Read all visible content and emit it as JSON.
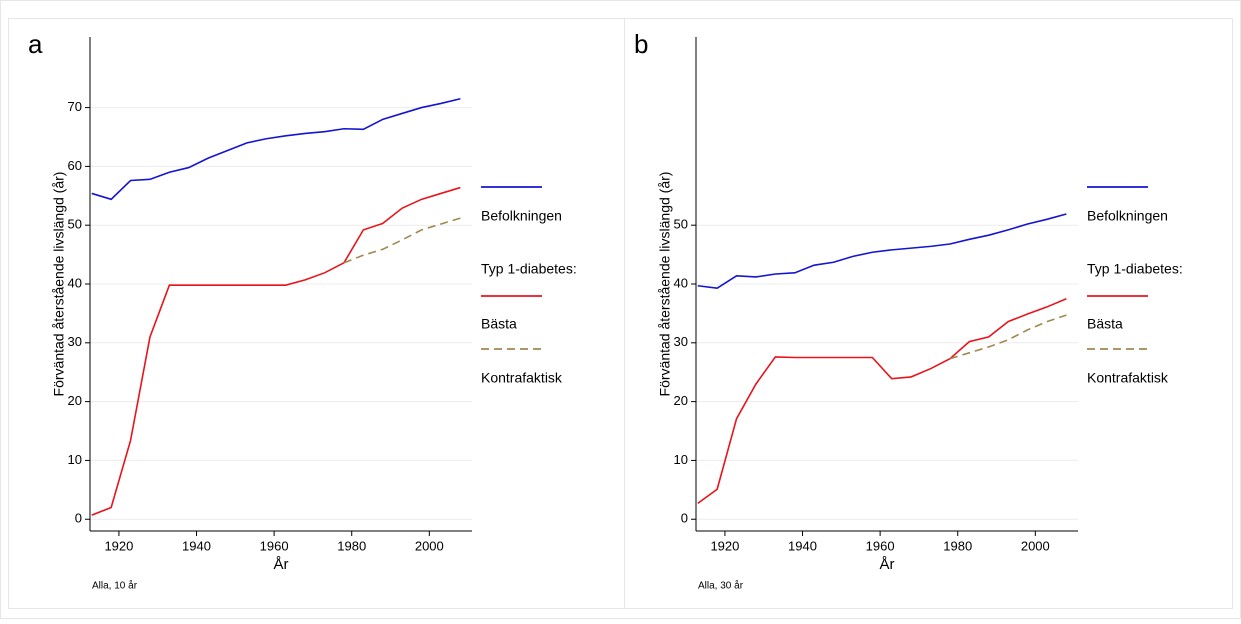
{
  "chart_data": [
    {
      "type": "line",
      "panel_label": "a",
      "ylabel": "Förväntad återstående livslängd (år)",
      "xlabel": "År",
      "note": "Alla, 10 år",
      "x": [
        1913,
        1918,
        1923,
        1928,
        1933,
        1938,
        1943,
        1948,
        1953,
        1958,
        1963,
        1968,
        1973,
        1978,
        1983,
        1988,
        1993,
        1998,
        2003,
        2008
      ],
      "legend_title": "Typ 1-diabetes:",
      "series": [
        {
          "name": "Befolkningen",
          "color": "#1414d2",
          "dash": false,
          "values": [
            55.4,
            54.4,
            57.6,
            57.8,
            59,
            59.8,
            61.4,
            62.7,
            64,
            64.7,
            65.2,
            65.6,
            65.9,
            66.4,
            66.3,
            68,
            69,
            70,
            70.7,
            71.5
          ]
        },
        {
          "name": "Bästa",
          "color": "#e8141c",
          "dash": false,
          "values": [
            0.7,
            2,
            13.4,
            31,
            39.8,
            39.8,
            39.8,
            39.8,
            39.8,
            39.8,
            39.8,
            40.7,
            41.9,
            43.6,
            49.2,
            50.3,
            52.9,
            54.4,
            55.4,
            56.4
          ]
        },
        {
          "name": "Kontrafaktisk",
          "color": "#a08850",
          "dash": true,
          "values": [
            null,
            null,
            null,
            null,
            null,
            null,
            null,
            null,
            null,
            null,
            null,
            null,
            null,
            43.6,
            44.9,
            45.9,
            47.5,
            49.2,
            50.2,
            51.2
          ]
        }
      ],
      "xlim": [
        1911,
        2011
      ],
      "xticks": [
        1920,
        1940,
        1960,
        1980,
        2000
      ],
      "ylim": [
        -2,
        82
      ],
      "yticks": [
        0,
        10,
        20,
        30,
        40,
        50,
        60,
        70
      ],
      "grid": true
    },
    {
      "type": "line",
      "panel_label": "b",
      "ylabel": "Förväntad återstående livslängd (år)",
      "xlabel": "År",
      "note": "Alla, 30 år",
      "x": [
        1913,
        1918,
        1923,
        1928,
        1933,
        1938,
        1943,
        1948,
        1953,
        1958,
        1963,
        1968,
        1973,
        1978,
        1983,
        1988,
        1993,
        1998,
        2003,
        2008
      ],
      "legend_title": "Typ 1-diabetes:",
      "series": [
        {
          "name": "Befolkningen",
          "color": "#1414d2",
          "dash": false,
          "values": [
            39.7,
            39.3,
            41.4,
            41.2,
            41.7,
            41.9,
            43.2,
            43.7,
            44.7,
            45.4,
            45.8,
            46.1,
            46.4,
            46.8,
            47.6,
            48.3,
            49.2,
            50.2,
            51,
            51.9
          ]
        },
        {
          "name": "Bästa",
          "color": "#e8141c",
          "dash": false,
          "values": [
            2.7,
            5.1,
            17.1,
            23,
            27.6,
            27.5,
            27.5,
            27.5,
            27.5,
            27.5,
            23.9,
            24.2,
            25.6,
            27.3,
            30.2,
            31,
            33.6,
            34.9,
            36.1,
            37.5
          ]
        },
        {
          "name": "Kontrafaktisk",
          "color": "#a08850",
          "dash": true,
          "values": [
            null,
            null,
            null,
            null,
            null,
            null,
            null,
            null,
            null,
            null,
            null,
            null,
            null,
            27.3,
            28.3,
            29.3,
            30.5,
            32.2,
            33.6,
            34.7
          ]
        }
      ],
      "xlim": [
        1911,
        2011
      ],
      "xticks": [
        1920,
        1940,
        1960,
        1980,
        2000
      ],
      "ylim": [
        -2,
        82
      ],
      "yticks": [
        0,
        10,
        20,
        30,
        40,
        50
      ],
      "grid": true
    }
  ]
}
